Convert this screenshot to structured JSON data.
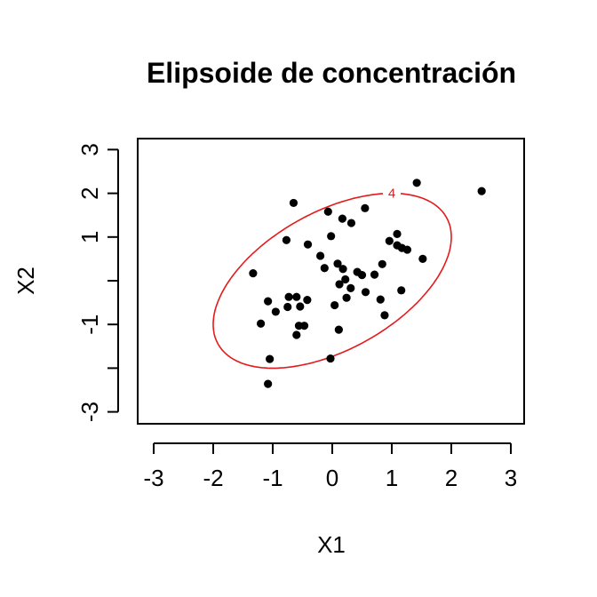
{
  "chart_data": {
    "type": "scatter",
    "title": "Elipsoide de concentración",
    "xlabel": "X1",
    "ylabel": "X2",
    "xlim": [
      -3.3,
      3.3
    ],
    "ylim": [
      -3.3,
      3.3
    ],
    "x_ticks": [
      -3,
      -2,
      -1,
      0,
      1,
      2,
      3
    ],
    "y_ticks": [
      -3,
      -2,
      -1,
      0,
      1,
      2,
      3
    ],
    "y_tick_labels": [
      "-3",
      "",
      "-1",
      "",
      "1",
      "2",
      "3"
    ],
    "grid": false,
    "point_color": "#000000",
    "series": [
      {
        "points": [
          [
            -0.65,
            1.78
          ],
          [
            1.42,
            2.24
          ],
          [
            2.51,
            2.05
          ],
          [
            0.55,
            1.66
          ],
          [
            -0.07,
            1.58
          ],
          [
            0.17,
            1.42
          ],
          [
            0.32,
            1.32
          ],
          [
            -0.02,
            1.02
          ],
          [
            1.09,
            1.07
          ],
          [
            -0.77,
            0.93
          ],
          [
            0.96,
            0.91
          ],
          [
            1.09,
            0.81
          ],
          [
            1.17,
            0.75
          ],
          [
            1.26,
            0.71
          ],
          [
            -0.41,
            0.83
          ],
          [
            -0.2,
            0.57
          ],
          [
            1.52,
            0.5
          ],
          [
            0.84,
            0.38
          ],
          [
            0.09,
            0.39
          ],
          [
            -0.13,
            0.29
          ],
          [
            0.18,
            0.27
          ],
          [
            0.42,
            0.2
          ],
          [
            0.5,
            0.13
          ],
          [
            -1.33,
            0.17
          ],
          [
            0.71,
            0.14
          ],
          [
            0.22,
            0.03
          ],
          [
            0.12,
            -0.08
          ],
          [
            0.31,
            -0.17
          ],
          [
            0.56,
            -0.26
          ],
          [
            1.16,
            -0.22
          ],
          [
            -0.73,
            -0.37
          ],
          [
            -0.6,
            -0.37
          ],
          [
            -0.42,
            -0.44
          ],
          [
            0.24,
            -0.39
          ],
          [
            0.81,
            -0.43
          ],
          [
            -1.08,
            -0.47
          ],
          [
            -0.54,
            -0.59
          ],
          [
            -0.75,
            -0.6
          ],
          [
            0.04,
            -0.56
          ],
          [
            0.88,
            -0.79
          ],
          [
            -0.95,
            -0.71
          ],
          [
            -1.2,
            -0.98
          ],
          [
            -0.56,
            -1.03
          ],
          [
            -0.47,
            -1.03
          ],
          [
            0.11,
            -1.12
          ],
          [
            -0.6,
            -1.24
          ],
          [
            -1.05,
            -1.79
          ],
          [
            -0.03,
            -1.78
          ],
          [
            -1.08,
            -2.36
          ]
        ]
      }
    ],
    "ellipse": {
      "label": "4",
      "color": "#e41a1c",
      "center": [
        0.0,
        0.0
      ],
      "cov": [
        [
          1.0,
          0.5
        ],
        [
          0.5,
          1.0
        ]
      ],
      "level": 4
    }
  }
}
